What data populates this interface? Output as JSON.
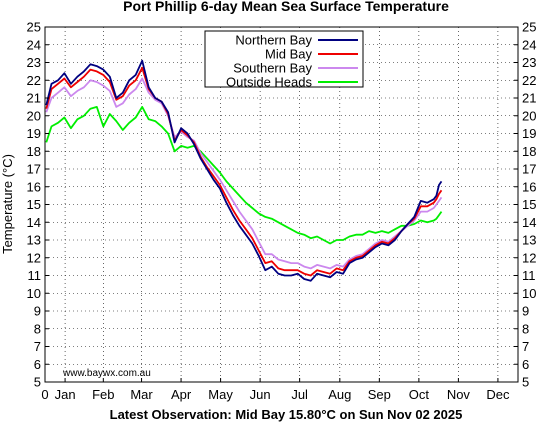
{
  "chart_data": {
    "type": "line",
    "title": "Port Phillip 6-day Mean Sea Surface Temperature",
    "ylabel": "Temperature (°C)",
    "xlabel": "",
    "footer": "Latest Observation: Mid Bay 15.80°C on Sun Nov 02 2025",
    "watermark": "www.baywx.com.au",
    "xlim": [
      0,
      365
    ],
    "ylim": [
      5,
      25
    ],
    "y_ticks": [
      5,
      6,
      7,
      8,
      9,
      10,
      11,
      12,
      13,
      14,
      15,
      16,
      17,
      18,
      19,
      20,
      21,
      22,
      23,
      24,
      25
    ],
    "x_ticks": [
      {
        "label": "0",
        "x": 0
      },
      {
        "label": "Jan",
        "x": 15.5
      },
      {
        "label": "Feb",
        "x": 45
      },
      {
        "label": "Mar",
        "x": 74.5
      },
      {
        "label": "Apr",
        "x": 105
      },
      {
        "label": "May",
        "x": 135.5
      },
      {
        "label": "Jun",
        "x": 166
      },
      {
        "label": "Jul",
        "x": 196.5
      },
      {
        "label": "Aug",
        "x": 227.5
      },
      {
        "label": "Sep",
        "x": 258
      },
      {
        "label": "Oct",
        "x": 288.5
      },
      {
        "label": "Nov",
        "x": 319
      },
      {
        "label": "Dec",
        "x": 349.5
      }
    ],
    "grid": true,
    "legend_position": "top-right",
    "series": [
      {
        "name": "Northern Bay",
        "color": "#000080",
        "x": [
          1,
          5,
          10,
          15,
          20,
          25,
          30,
          35,
          40,
          45,
          50,
          55,
          60,
          65,
          70,
          75,
          80,
          85,
          90,
          95,
          100,
          105,
          110,
          115,
          120,
          125,
          130,
          135,
          140,
          145,
          150,
          155,
          160,
          165,
          170,
          175,
          180,
          185,
          190,
          195,
          200,
          205,
          210,
          215,
          220,
          225,
          230,
          235,
          240,
          245,
          250,
          255,
          260,
          265,
          270,
          275,
          280,
          285,
          290,
          295,
          300,
          302,
          304,
          306
        ],
        "y": [
          20.6,
          21.8,
          22.0,
          22.4,
          21.8,
          22.2,
          22.5,
          22.9,
          22.8,
          22.6,
          22.2,
          21.0,
          21.3,
          22.0,
          22.3,
          23.1,
          21.6,
          21.0,
          20.8,
          20.2,
          18.5,
          19.3,
          19.0,
          18.4,
          17.6,
          17.0,
          16.4,
          15.9,
          15.1,
          14.4,
          13.8,
          13.3,
          12.8,
          12.1,
          11.3,
          11.5,
          11.1,
          11.0,
          11.0,
          11.1,
          10.8,
          10.7,
          11.1,
          11.0,
          10.9,
          11.2,
          11.1,
          11.7,
          11.9,
          12.0,
          12.3,
          12.6,
          12.8,
          12.7,
          13.0,
          13.5,
          13.9,
          14.3,
          15.2,
          15.1,
          15.3,
          15.5,
          16.1,
          16.3
        ]
      },
      {
        "name": "Mid Bay",
        "color": "#ee0000",
        "x": [
          1,
          5,
          10,
          15,
          20,
          25,
          30,
          35,
          40,
          45,
          50,
          55,
          60,
          65,
          70,
          75,
          80,
          85,
          90,
          95,
          100,
          105,
          110,
          115,
          120,
          125,
          130,
          135,
          140,
          145,
          150,
          155,
          160,
          165,
          170,
          175,
          180,
          185,
          190,
          195,
          200,
          205,
          210,
          215,
          220,
          225,
          230,
          235,
          240,
          245,
          250,
          255,
          260,
          265,
          270,
          275,
          280,
          285,
          290,
          295,
          300,
          302,
          304,
          306
        ],
        "y": [
          20.4,
          21.5,
          21.8,
          22.1,
          21.6,
          21.9,
          22.2,
          22.6,
          22.5,
          22.3,
          21.9,
          20.9,
          21.1,
          21.7,
          22.0,
          22.7,
          21.5,
          21.0,
          20.8,
          20.1,
          18.6,
          19.2,
          18.9,
          18.5,
          17.7,
          17.1,
          16.6,
          16.1,
          15.4,
          14.7,
          14.1,
          13.6,
          13.1,
          12.4,
          11.7,
          11.8,
          11.4,
          11.3,
          11.3,
          11.3,
          11.1,
          11.0,
          11.3,
          11.2,
          11.1,
          11.4,
          11.3,
          11.8,
          12.0,
          12.1,
          12.4,
          12.7,
          12.9,
          12.8,
          13.1,
          13.5,
          13.9,
          14.2,
          14.9,
          14.9,
          15.1,
          15.3,
          15.6,
          15.8
        ]
      },
      {
        "name": "Southern Bay",
        "color": "#cc88ee",
        "x": [
          1,
          5,
          10,
          15,
          20,
          25,
          30,
          35,
          40,
          45,
          50,
          55,
          60,
          65,
          70,
          75,
          80,
          85,
          90,
          95,
          100,
          105,
          110,
          115,
          120,
          125,
          130,
          135,
          140,
          145,
          150,
          155,
          160,
          165,
          170,
          175,
          180,
          185,
          190,
          195,
          200,
          205,
          210,
          215,
          220,
          225,
          230,
          235,
          240,
          245,
          250,
          255,
          260,
          265,
          270,
          275,
          280,
          285,
          290,
          295,
          300,
          302,
          304,
          306
        ],
        "y": [
          20.2,
          21.0,
          21.3,
          21.6,
          21.1,
          21.4,
          21.6,
          22.0,
          21.9,
          21.7,
          21.4,
          20.5,
          20.7,
          21.2,
          21.5,
          22.1,
          21.3,
          20.9,
          20.7,
          20.0,
          18.8,
          19.1,
          18.8,
          18.6,
          17.9,
          17.4,
          16.9,
          16.4,
          15.8,
          15.2,
          14.6,
          14.1,
          13.6,
          12.9,
          12.2,
          12.2,
          11.9,
          11.8,
          11.7,
          11.7,
          11.5,
          11.4,
          11.6,
          11.5,
          11.4,
          11.6,
          11.5,
          11.9,
          12.1,
          12.2,
          12.5,
          12.8,
          13.0,
          12.9,
          13.2,
          13.5,
          13.8,
          14.1,
          14.6,
          14.6,
          14.8,
          15.0,
          15.2,
          15.4
        ]
      },
      {
        "name": "Outside Heads",
        "color": "#00ee00",
        "x": [
          1,
          5,
          10,
          15,
          20,
          25,
          30,
          35,
          40,
          45,
          50,
          55,
          60,
          65,
          70,
          75,
          80,
          85,
          90,
          95,
          100,
          105,
          110,
          115,
          120,
          125,
          130,
          135,
          140,
          145,
          150,
          155,
          160,
          165,
          170,
          175,
          180,
          185,
          190,
          195,
          200,
          205,
          210,
          215,
          220,
          225,
          230,
          235,
          240,
          245,
          250,
          255,
          260,
          265,
          270,
          275,
          280,
          285,
          290,
          295,
          300,
          302,
          304,
          306
        ],
        "y": [
          18.5,
          19.4,
          19.6,
          19.9,
          19.3,
          19.8,
          20.0,
          20.4,
          20.5,
          19.4,
          20.1,
          19.7,
          19.2,
          19.6,
          19.9,
          20.5,
          19.8,
          19.7,
          19.4,
          19.0,
          18.0,
          18.3,
          18.2,
          18.3,
          18.0,
          17.6,
          17.2,
          16.8,
          16.3,
          15.9,
          15.5,
          15.1,
          14.8,
          14.5,
          14.3,
          14.2,
          14.0,
          13.8,
          13.6,
          13.4,
          13.3,
          13.1,
          13.2,
          13.0,
          12.8,
          13.0,
          13.0,
          13.2,
          13.3,
          13.3,
          13.5,
          13.4,
          13.5,
          13.4,
          13.6,
          13.8,
          13.8,
          13.9,
          14.1,
          14.0,
          14.1,
          14.2,
          14.4,
          14.6
        ]
      }
    ]
  }
}
